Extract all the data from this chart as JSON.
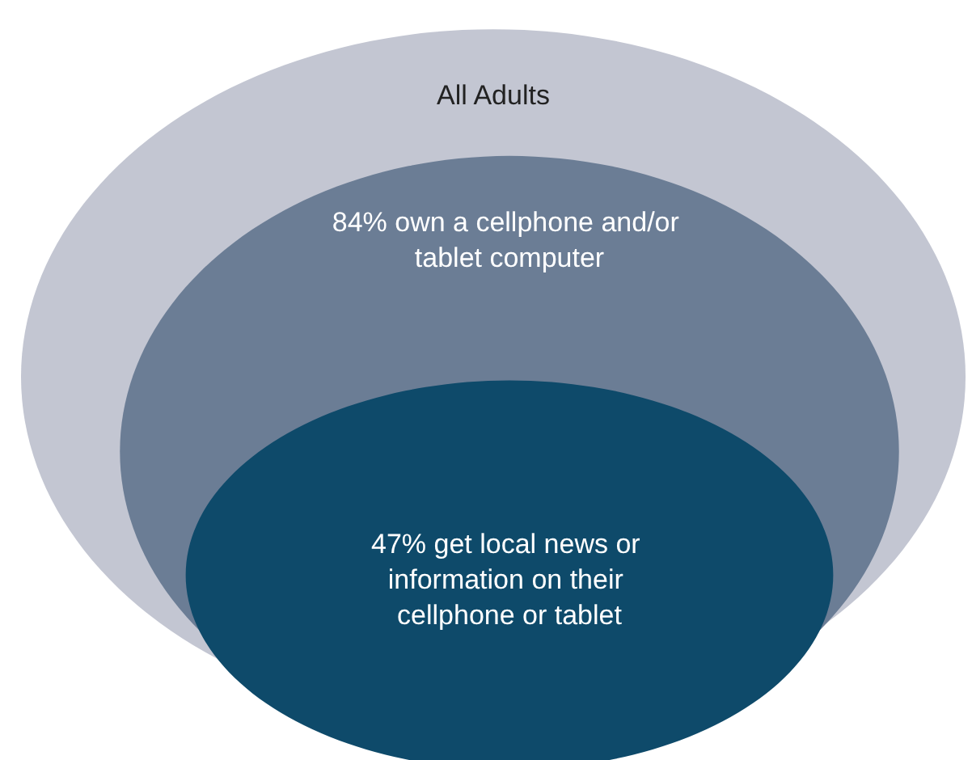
{
  "chart_data": {
    "type": "other",
    "categories": [
      "All Adults",
      "own a cellphone and/or tablet computer",
      "get local news or information on their cellphone or tablet"
    ],
    "values": [
      null,
      84,
      47
    ],
    "value_labels": [
      null,
      "84%",
      "47%"
    ],
    "colors": [
      "#c3c6d2",
      "#6b7d95",
      "#0e4a6a"
    ]
  }
}
